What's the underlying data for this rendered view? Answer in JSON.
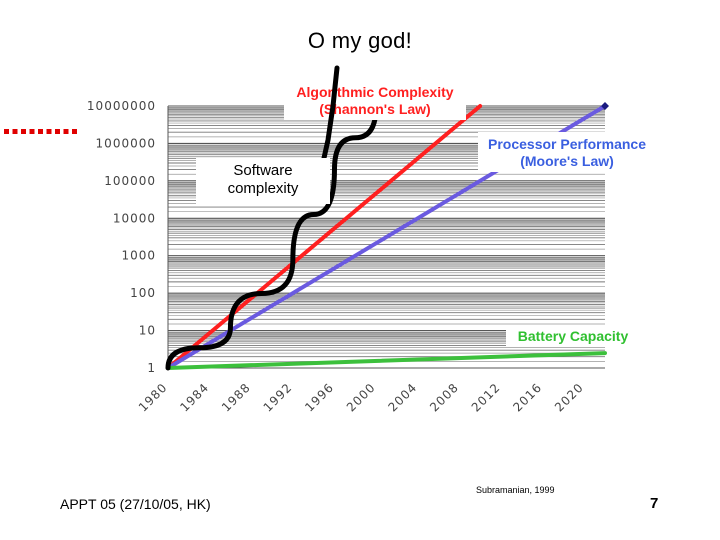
{
  "slide": {
    "title": "O my god!",
    "footer": "APPT 05 (27/10/05, HK)",
    "source": "Subramanian, 1999",
    "page_number": "7"
  },
  "callout": {
    "software_complexity": [
      "Software",
      "complexity"
    ]
  },
  "chart_data": {
    "type": "line",
    "y_scale": "log10",
    "y_ticks": [
      "1",
      "10",
      "100",
      "1000",
      "10000",
      "100000",
      "1000000",
      "10000000"
    ],
    "x_ticks": [
      "1980",
      "1984",
      "1988",
      "1992",
      "1996",
      "2000",
      "2004",
      "2008",
      "2012",
      "2016",
      "2020"
    ],
    "xlim": [
      1980,
      2022
    ],
    "ylim": [
      1,
      10000000
    ],
    "grid": true,
    "series": [
      {
        "name": "Algorithmic Complexity (Shannon's Law)",
        "label_lines": [
          "Algorithmic Complexity",
          "(Shannon's Law)"
        ],
        "color": "#ff2020",
        "x": [
          1980,
          2010
        ],
        "y": [
          1,
          10000000
        ]
      },
      {
        "name": "Processor Performance (Moore's Law)",
        "label_lines": [
          "Processor Performance",
          "(Moore's Law)"
        ],
        "color": "#6a5ae0",
        "x": [
          1980,
          2022
        ],
        "y": [
          1,
          10000000
        ]
      },
      {
        "name": "Battery Capacity",
        "label_lines": [
          "Battery Capacity"
        ],
        "color": "#3cc03c",
        "x": [
          1980,
          2022
        ],
        "y": [
          1,
          2.5
        ]
      },
      {
        "name": "Software complexity",
        "color": "#000000",
        "x": [
          1980,
          1986,
          1992,
          1996,
          2000
        ],
        "y": [
          1,
          12,
          800,
          200000,
          10000000
        ]
      }
    ],
    "label_colors": {
      "Algorithmic Complexity (Shannon's Law)": "#ff2020",
      "Processor Performance (Moore's Law)": "#3a5fe0",
      "Battery Capacity": "#30c030"
    }
  }
}
